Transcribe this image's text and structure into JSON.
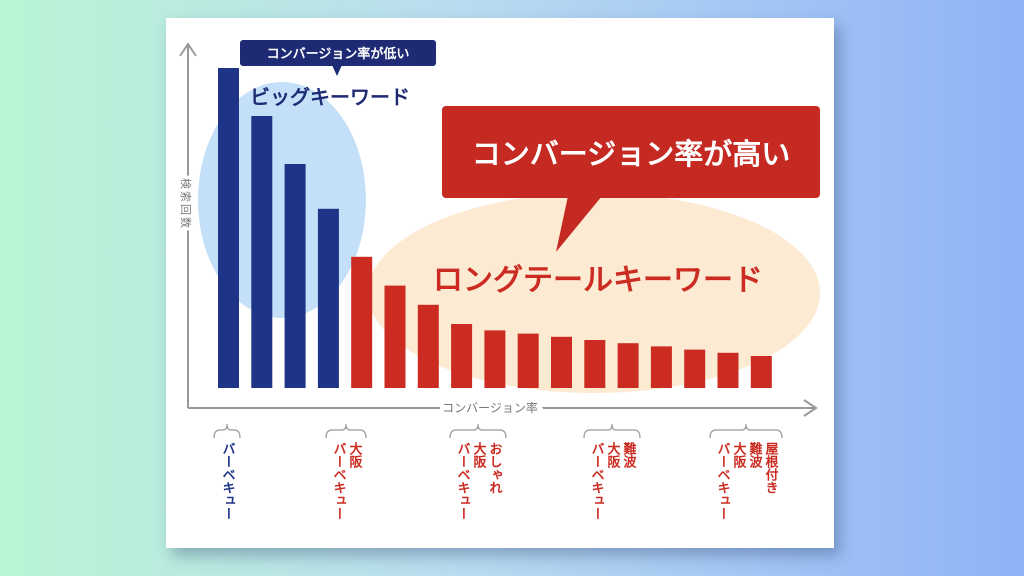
{
  "chart_data": {
    "type": "bar",
    "xlabel": "コンバージョン率",
    "ylabel": "検索回数",
    "big": {
      "callout": "コンバージョン率が低い",
      "label": "ビッグキーワード",
      "values": [
        100,
        85,
        70,
        56
      ],
      "color": "#1e3487"
    },
    "long": {
      "callout": "コンバージョン率が高い",
      "label": "ロングテールキーワード",
      "values": [
        41,
        32,
        26,
        20,
        18,
        17,
        16,
        15,
        14,
        13,
        12,
        11,
        10
      ],
      "color": "#cc2b22"
    },
    "keywords": [
      {
        "color": "#1e3487",
        "lines": [
          "バーベキュー"
        ]
      },
      {
        "color": "#cc2b22",
        "lines": [
          "大阪",
          "バーベキュー"
        ]
      },
      {
        "color": "#cc2b22",
        "lines": [
          "おしゃれ",
          "大阪",
          "バーベキュー"
        ]
      },
      {
        "color": "#cc2b22",
        "lines": [
          "難波",
          "大阪",
          "バーベキュー"
        ]
      },
      {
        "color": "#cc2b22",
        "lines": [
          "屋根付き",
          "難波",
          "大阪",
          "バーベキュー"
        ]
      }
    ]
  }
}
